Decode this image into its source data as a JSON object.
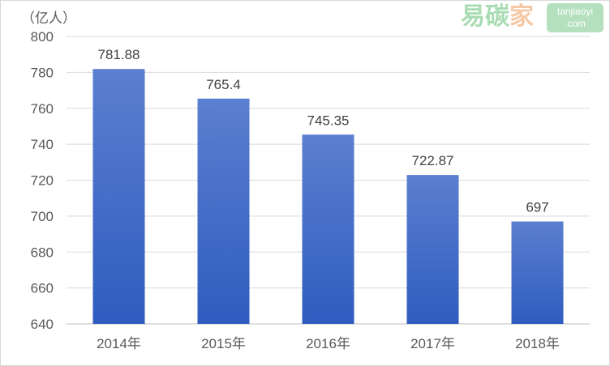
{
  "chart_data": {
    "type": "bar",
    "unit_label": "（亿人）",
    "categories": [
      "2014年",
      "2015年",
      "2016年",
      "2017年",
      "2018年"
    ],
    "values": [
      781.88,
      765.4,
      745.35,
      722.87,
      697
    ],
    "value_labels": [
      "781.88",
      "765.4",
      "745.35",
      "722.87",
      "697"
    ],
    "ylim": [
      640,
      800
    ],
    "yticks": [
      640,
      660,
      680,
      700,
      720,
      740,
      760,
      780,
      800
    ],
    "grid": true,
    "bar_color_top": "#5b7fd0",
    "bar_color_bottom": "#2f5cbf"
  },
  "watermark": {
    "text": "易碳家",
    "domain_line1": "tanjiaoyi",
    "domain_line2": ".com"
  }
}
